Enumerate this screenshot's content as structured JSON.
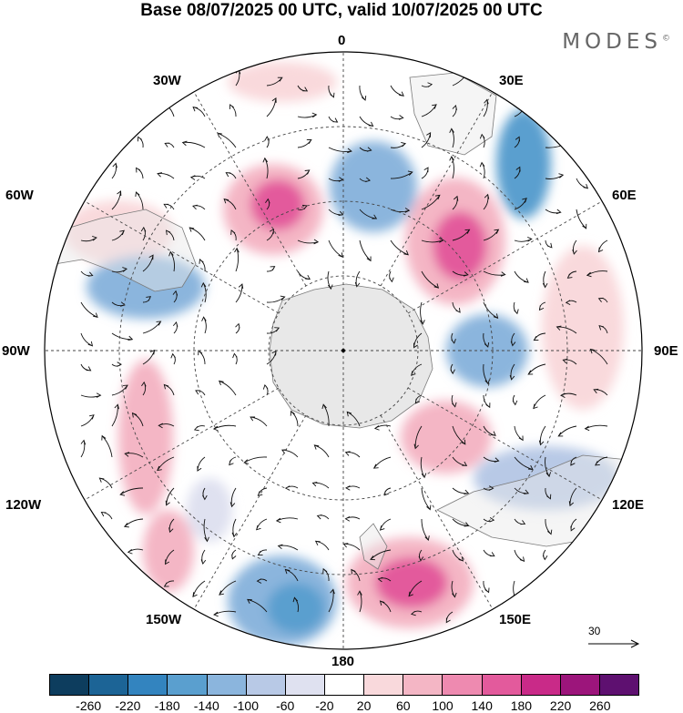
{
  "title": "Base 08/07/2025 00 UTC, valid 10/07/2025 00 UTC",
  "brand": {
    "text": "MODES",
    "mark": "©"
  },
  "longitude_labels": {
    "lon_0": "0",
    "lon_30e": "30E",
    "lon_60e": "60E",
    "lon_90e": "90E",
    "lon_120e": "120E",
    "lon_150e": "150E",
    "lon_180": "180",
    "lon_150w": "150W",
    "lon_120w": "120W",
    "lon_90w": "90W",
    "lon_60w": "60W",
    "lon_30w": "30W"
  },
  "reference_vector": "30",
  "colorbar": {
    "colors": [
      "#0d3d5e",
      "#1c6496",
      "#3384bf",
      "#5a9fcf",
      "#8bb5dd",
      "#b8c9e6",
      "#dfe1f0",
      "#ffffff",
      "#f9d9dc",
      "#f4b6c5",
      "#ee8ab0",
      "#e35a9c",
      "#c92a88",
      "#9c157b",
      "#5e1070"
    ],
    "labels": [
      "-260",
      "-220",
      "-180",
      "-140",
      "-100",
      "-60",
      "-20",
      "20",
      "60",
      "100",
      "140",
      "180",
      "220",
      "260"
    ]
  },
  "colors": {
    "land": "#e8e8e8",
    "coast": "#7a7a7a",
    "grid": "#444444"
  }
}
